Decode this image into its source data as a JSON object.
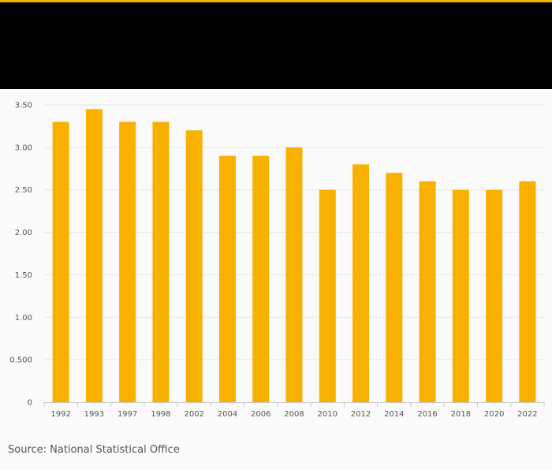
{
  "colors": {
    "accent": "#f9b100",
    "header": "#000000",
    "background": "#fafafa",
    "grid": "#e6e6e6",
    "axis": "#cccccc"
  },
  "source": "Source: National Statistical Office",
  "chart_data": {
    "type": "bar",
    "categories": [
      "1992",
      "1993",
      "1997",
      "1998",
      "2002",
      "2004",
      "2006",
      "2008",
      "2010",
      "2012",
      "2014",
      "2016",
      "2018",
      "2020",
      "2022"
    ],
    "values": [
      3.3,
      3.45,
      3.3,
      3.3,
      3.2,
      2.9,
      2.9,
      3.0,
      2.5,
      2.8,
      2.7,
      2.6,
      2.5,
      2.5,
      2.6
    ],
    "title": "",
    "xlabel": "",
    "ylabel": "",
    "ylim": [
      0,
      3.5
    ],
    "yticks": [
      0,
      0.5,
      1.0,
      1.5,
      2.0,
      2.5,
      3.0,
      3.5
    ],
    "ytick_labels": [
      "0",
      "0.500",
      "1.00",
      "1.50",
      "2.00",
      "2.50",
      "3.00",
      "3.50"
    ],
    "grid": true,
    "legend": "none"
  }
}
